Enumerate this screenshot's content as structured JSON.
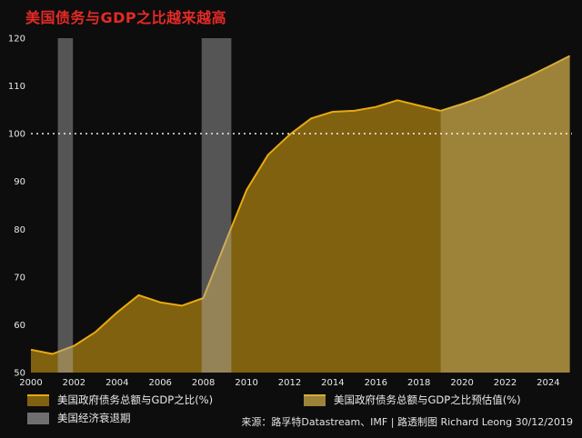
{
  "title": "美国债务与GDP之比越来越高",
  "footer": {
    "source": "来源：路孚特Datastream、IMF | 路透制图 Richard Leong 30/12/2019"
  },
  "colors": {
    "title": "#e42a26",
    "background": "#0d0d0d",
    "actual_fill": "#7f6110",
    "actual_line": "#e9a911",
    "forecast_fill": "#9d8339",
    "forecast_line": "#d9ad35",
    "recession_band": "rgba(173,173,173,0.45)",
    "reference_line": "#ffffff",
    "tick_text": "#e9e9e9"
  },
  "chart_data": {
    "type": "area",
    "title": "美国债务与GDP之比越来越高",
    "xlabel": "",
    "ylabel": "",
    "x_range": [
      2000,
      2025.1
    ],
    "y_range": [
      50,
      120
    ],
    "x_ticks": [
      2000,
      2002,
      2004,
      2006,
      2008,
      2010,
      2012,
      2014,
      2016,
      2018,
      2020,
      2022,
      2024
    ],
    "y_ticks": [
      50,
      60,
      70,
      80,
      90,
      100,
      110,
      120
    ],
    "grid": false,
    "legend_position": "bottom",
    "reference_line": 100,
    "series": [
      {
        "name": "美国政府债务总额与GDP之比(%)",
        "x": [
          2000,
          2001,
          2002,
          2003,
          2004,
          2005,
          2006,
          2007,
          2008,
          2009,
          2010,
          2011,
          2012,
          2013,
          2014,
          2015,
          2016,
          2017,
          2018,
          2019
        ],
        "y": [
          54.8,
          53.9,
          55.6,
          58.5,
          62.6,
          66.2,
          64.7,
          64.0,
          65.6,
          77.0,
          88.2,
          95.6,
          99.8,
          103.2,
          104.6,
          104.8,
          105.6,
          107.0,
          105.9,
          104.8
        ],
        "fill": "#7f6110",
        "line": "#e9a911"
      },
      {
        "name": "美国政府债务总额与GDP之比预估值(%)",
        "x": [
          2019,
          2020,
          2021,
          2022,
          2023,
          2024,
          2025
        ],
        "y": [
          104.8,
          106.2,
          107.8,
          109.8,
          111.8,
          114.0,
          116.3
        ],
        "fill": "#9d8339",
        "line": "#d9ad35"
      }
    ],
    "recessions": {
      "label": "美国经济衰退期",
      "periods": [
        [
          2001.25,
          2001.95
        ],
        [
          2007.92,
          2009.3
        ]
      ],
      "color": "rgba(173,173,173,0.45)"
    }
  }
}
